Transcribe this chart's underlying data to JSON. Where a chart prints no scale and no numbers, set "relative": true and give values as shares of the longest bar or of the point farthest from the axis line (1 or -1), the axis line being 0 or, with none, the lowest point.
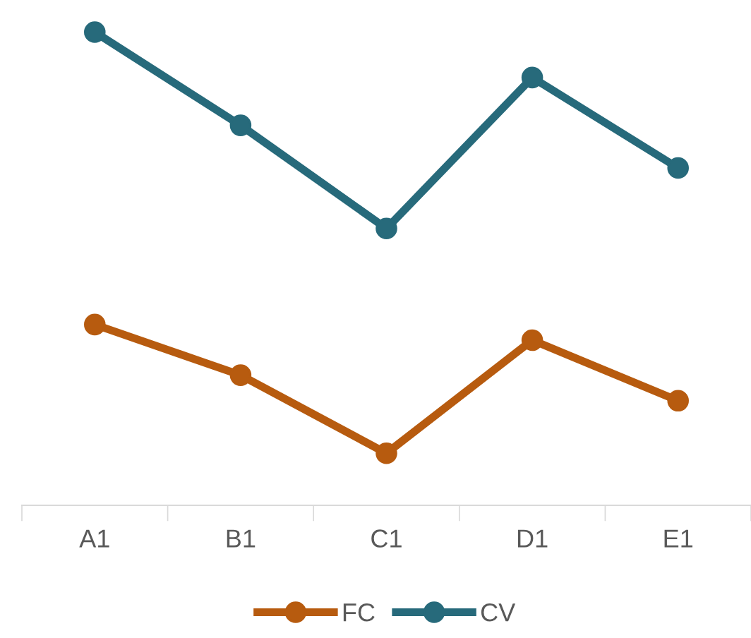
{
  "chart_data": {
    "type": "line",
    "relative": true,
    "categories": [
      "A1",
      "B1",
      "C1",
      "D1",
      "E1"
    ],
    "series": [
      {
        "name": "FC",
        "color": "#b75b0f",
        "values": [
          0.382,
          0.275,
          0.11,
          0.349,
          0.221
        ]
      },
      {
        "name": "CV",
        "color": "#276a7b",
        "values": [
          1.0,
          0.803,
          0.585,
          0.904,
          0.713
        ]
      }
    ],
    "marker": "circle",
    "line_style": "solid",
    "grid": false,
    "legend": "bottom"
  }
}
